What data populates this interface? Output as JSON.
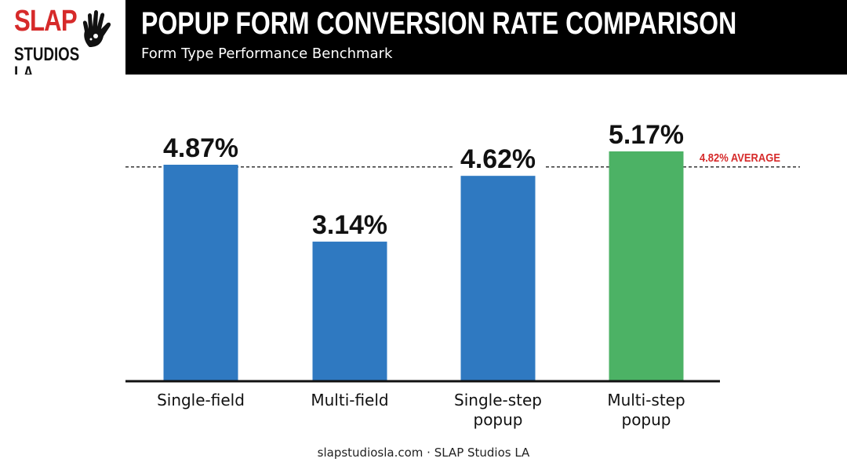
{
  "logo": {
    "line1": "SLAP",
    "line2": "STUDIOS LA"
  },
  "header": {
    "title": "POPUP FORM CONVERSION RATE COMPARISON",
    "subtitle": "Form Type Performance Benchmark"
  },
  "footer": {
    "text": "slapstudiosla.com · SLAP Studios LA"
  },
  "colors": {
    "bar": "#2f79c1",
    "highlight": "#4cb265",
    "average": "#d62a2a",
    "brand_red": "#d62a2a"
  },
  "chart_data": {
    "type": "bar",
    "categories": [
      [
        "Single-field"
      ],
      [
        "Multi-field"
      ],
      [
        "Single-step",
        "popup"
      ],
      [
        "Multi-step",
        "popup"
      ]
    ],
    "values": [
      4.87,
      3.14,
      4.62,
      5.17
    ],
    "value_labels": [
      "4.87%",
      "3.14%",
      "4.62%",
      "5.17%"
    ],
    "highlight_index": 3,
    "average": {
      "value": 4.82,
      "label": "4.82% AVERAGE"
    },
    "ylim": [
      0,
      5.17
    ],
    "grid": false
  }
}
